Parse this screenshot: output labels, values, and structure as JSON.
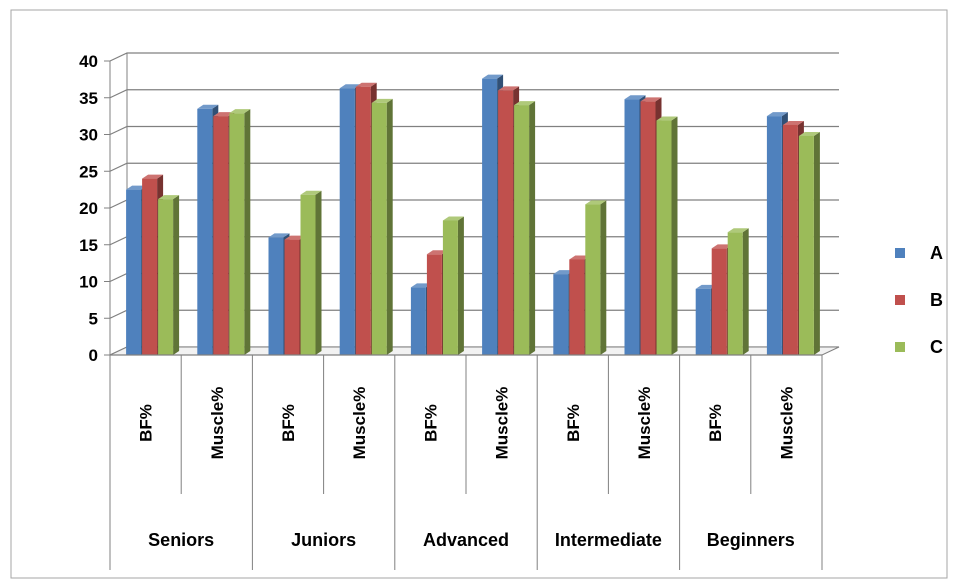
{
  "chart_data": {
    "type": "bar",
    "title": "",
    "xlabel": "",
    "ylabel": "",
    "ylim": [
      0,
      40
    ],
    "yticks": [
      0,
      5,
      10,
      15,
      20,
      25,
      30,
      35,
      40
    ],
    "grid": true,
    "three_d": true,
    "legend_position": "right",
    "groups": [
      "Seniors",
      "Juniors",
      "Advanced",
      "Intermediate",
      "Beginners"
    ],
    "categories": [
      "BF%",
      "Muscle%",
      "BF%",
      "Muscle%",
      "BF%",
      "Muscle%",
      "BF%",
      "Muscle%",
      "BF%",
      "Muscle%"
    ],
    "series": [
      {
        "name": "A",
        "color": "#4f81bd",
        "values": [
          22.5,
          33.5,
          16,
          36.3,
          9.2,
          37.6,
          11,
          34.8,
          9,
          32.5
        ]
      },
      {
        "name": "B",
        "color": "#c0504d",
        "values": [
          24,
          32.5,
          15.7,
          36.5,
          13.7,
          36,
          13,
          34.5,
          14.5,
          31.3
        ]
      },
      {
        "name": "C",
        "color": "#9bbb59",
        "values": [
          21.2,
          32.9,
          21.8,
          34.3,
          18.3,
          34,
          20.5,
          31.9,
          16.7,
          29.8
        ]
      }
    ]
  }
}
